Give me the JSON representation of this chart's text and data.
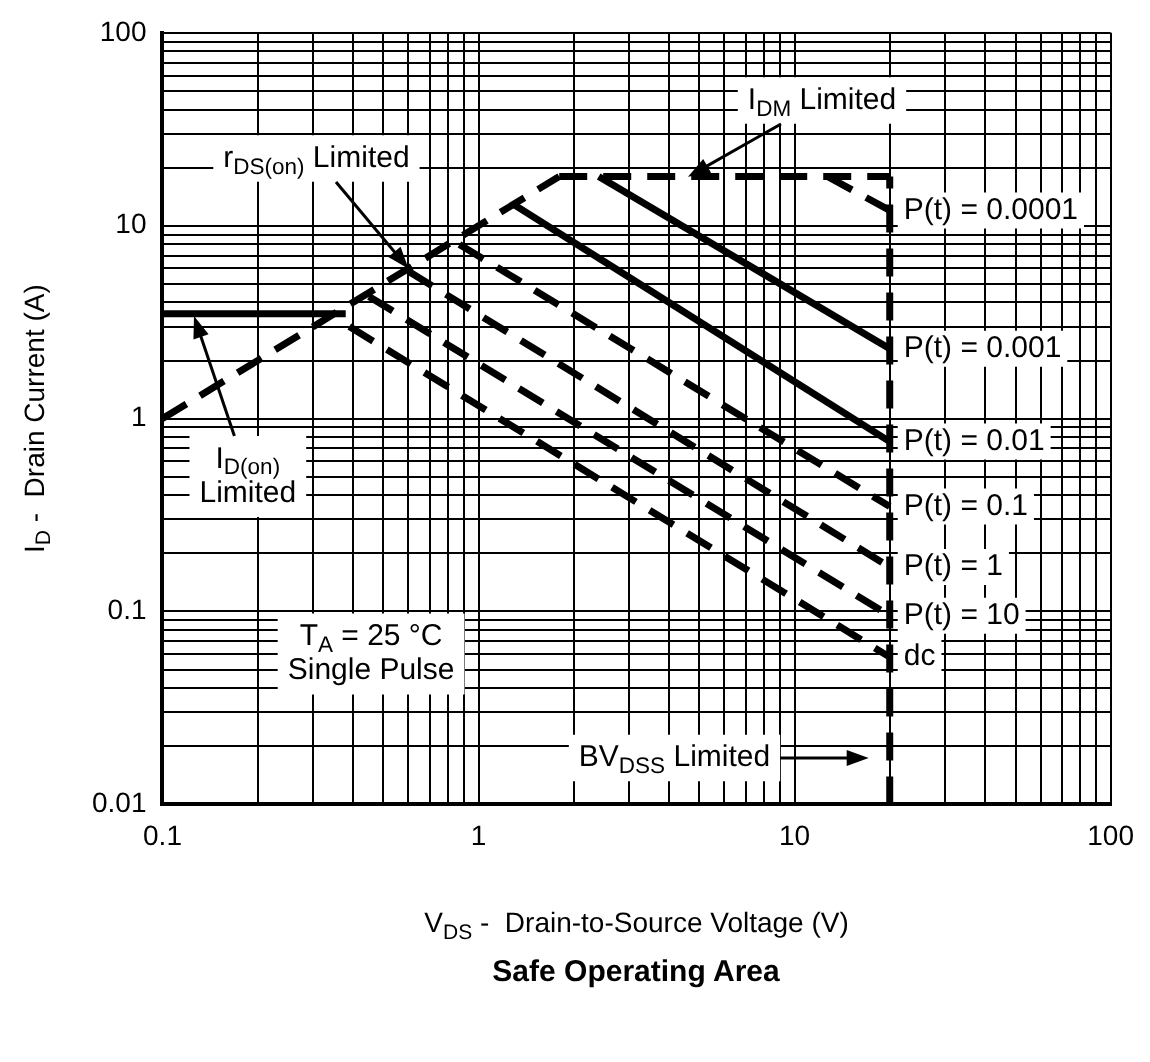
{
  "chart_data": {
    "type": "line",
    "title": "Safe Operating Area",
    "xlabel": "V$_{DS}$ -  Drain-to-Source Voltage (V)",
    "ylabel": "I$_{D}$ -  Drain Current (A)",
    "log": "xy",
    "xlim": [
      0.1,
      100
    ],
    "ylim": [
      0.01,
      100
    ],
    "xticks": [
      0.1,
      1,
      10,
      100
    ],
    "yticks": [
      0.01,
      0.1,
      1,
      10,
      100
    ],
    "grid": true,
    "legend": false,
    "marker": "none",
    "series": [
      {
        "name": "P(t) = 0.0001",
        "color": "#000000",
        "line_style": "dashed",
        "x": [
          12.7,
          20
        ],
        "values": [
          18,
          12
        ]
      },
      {
        "name": "P(t) = 0.001",
        "color": "#000000",
        "line_style": "solid",
        "x": [
          2.4,
          20
        ],
        "values": [
          18,
          2.3
        ]
      },
      {
        "name": "P(t) = 0.01",
        "color": "#000000",
        "line_style": "solid",
        "x": [
          1.29,
          20
        ],
        "values": [
          12.9,
          0.76
        ]
      },
      {
        "name": "P(t) = 0.1",
        "color": "#000000",
        "line_style": "dashed",
        "x": [
          0.87,
          20
        ],
        "values": [
          8,
          0.35
        ]
      },
      {
        "name": "P(t) = 1",
        "color": "#000000",
        "line_style": "dashed",
        "x": [
          0.6,
          20
        ],
        "values": [
          5.8,
          0.17
        ]
      },
      {
        "name": "P(t) = 10",
        "color": "#000000",
        "line_style": "dashed",
        "x": [
          0.45,
          20
        ],
        "values": [
          4.3,
          0.095
        ]
      },
      {
        "name": "dc",
        "color": "#000000",
        "line_style": "dashed",
        "x": [
          0.39,
          20
        ],
        "values": [
          3,
          0.058
        ]
      },
      {
        "color": "#000000",
        "line_style": "dashed",
        "x": [
          1.8,
          20
        ],
        "values": [
          18,
          18
        ]
      },
      {
        "color": "#000000",
        "line_style": "solid",
        "x": [
          0.1,
          0.38
        ],
        "values": [
          3.5,
          3.5
        ]
      },
      {
        "color": "#000000",
        "line_style": "dashed",
        "x": [
          0.1,
          1.8
        ],
        "values": [
          1,
          18
        ]
      },
      {
        "color": "#000000",
        "line_style": "dashed",
        "x": [
          20,
          20
        ],
        "values": [
          0.01,
          18
        ]
      }
    ],
    "annotations": [
      {
        "text": "I$_{DM}$ Limited",
        "x": 4.6,
        "y": 18
      },
      {
        "text": "r$_{DS(on)}$ Limited",
        "x": 0.6,
        "y": 6
      },
      "I$_{D(on)}$\nLimited",
      "T$_{A}$ = 25 °C\nSingle Pulse",
      "BV$_{DSS}$ Limited"
    ]
  }
}
